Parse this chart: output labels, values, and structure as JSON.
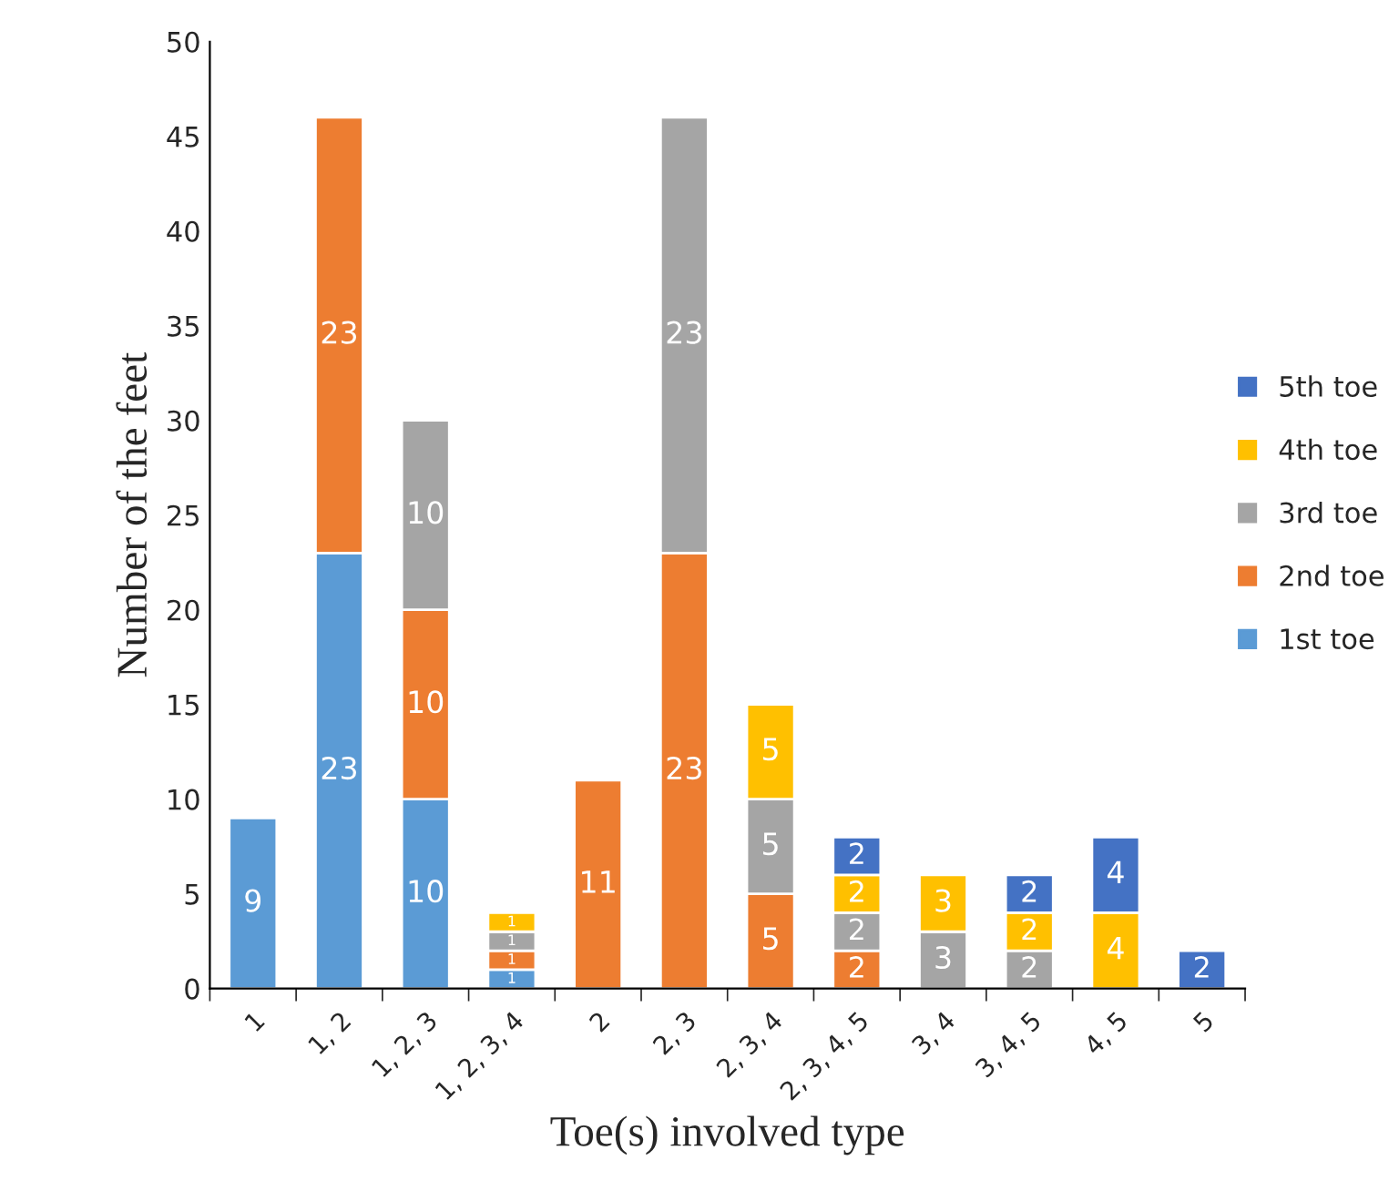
{
  "chart_data": {
    "type": "bar",
    "stacked": true,
    "xlabel": "Toe(s) involved type",
    "ylabel": "Number of the feet",
    "categories": [
      "1",
      "1, 2",
      "1, 2, 3",
      "1, 2, 3, 4",
      "2",
      "2, 3",
      "2, 3, 4",
      "2, 3, 4, 5",
      "3, 4",
      "3, 4, 5",
      "4, 5",
      "5"
    ],
    "series": [
      {
        "name": "1st toe",
        "color": "#5b9bd5",
        "values": [
          9,
          23,
          10,
          1,
          null,
          null,
          null,
          null,
          null,
          null,
          null,
          null
        ]
      },
      {
        "name": "2nd toe",
        "color": "#ed7d31",
        "values": [
          null,
          23,
          10,
          1,
          11,
          23,
          5,
          2,
          null,
          null,
          null,
          null
        ]
      },
      {
        "name": "3rd toe",
        "color": "#a5a5a5",
        "values": [
          null,
          null,
          10,
          1,
          null,
          23,
          5,
          2,
          3,
          2,
          null,
          null
        ]
      },
      {
        "name": "4th toe",
        "color": "#ffc000",
        "values": [
          null,
          null,
          null,
          1,
          null,
          null,
          5,
          2,
          3,
          2,
          4,
          null
        ]
      },
      {
        "name": "5th toe",
        "color": "#4472c4",
        "values": [
          null,
          null,
          null,
          null,
          null,
          null,
          null,
          2,
          null,
          2,
          4,
          2
        ]
      }
    ],
    "ylim": [
      0,
      50
    ],
    "yticks": [
      0,
      5,
      10,
      15,
      20,
      25,
      30,
      35,
      40,
      45,
      50
    ],
    "data_labels": true,
    "legend": "right",
    "grid": false
  }
}
